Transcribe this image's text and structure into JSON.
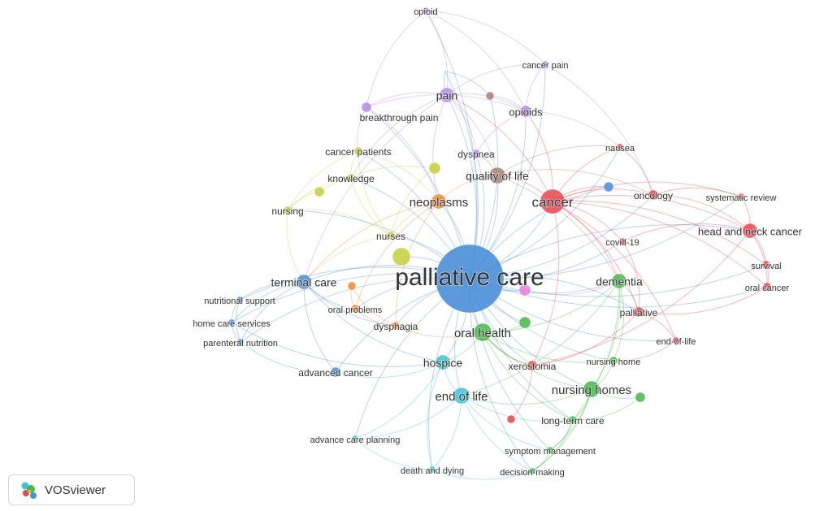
{
  "colors": {
    "red": "#e8454f",
    "green": "#45b94a",
    "blue": "#4a8fd8",
    "yellow": "#c6cf3a",
    "purple": "#b389e6",
    "cyan": "#3cc3d6",
    "orange": "#f08c2e",
    "brown": "#a78174",
    "pink": "#e57fd7"
  },
  "nodes": [
    {
      "id": "palliative-care",
      "label": "palliative care",
      "cluster": "blue"
    },
    {
      "id": "cancer",
      "label": "cancer",
      "cluster": "red"
    },
    {
      "id": "quality-of-life",
      "label": "quality of life",
      "cluster": "brown"
    },
    {
      "id": "neoplasms",
      "label": "neoplasms",
      "cluster": "orange"
    },
    {
      "id": "pain",
      "label": "pain",
      "cluster": "purple"
    },
    {
      "id": "opioids",
      "label": "opioids",
      "cluster": "purple"
    },
    {
      "id": "opioid",
      "label": "opioid",
      "cluster": "purple"
    },
    {
      "id": "cancer-pain",
      "label": "cancer pain",
      "cluster": "purple"
    },
    {
      "id": "breakthrough-pain",
      "label": "breakthrough pain",
      "cluster": "purple"
    },
    {
      "id": "dyspnea",
      "label": "dyspnea",
      "cluster": "purple"
    },
    {
      "id": "nausea",
      "label": "nausea",
      "cluster": "red"
    },
    {
      "id": "cancer-patients",
      "label": "cancer patients",
      "cluster": "yellow"
    },
    {
      "id": "knowledge",
      "label": "knowledge",
      "cluster": "yellow"
    },
    {
      "id": "nursing",
      "label": "nursing",
      "cluster": "yellow"
    },
    {
      "id": "nurses",
      "label": "nurses",
      "cluster": "yellow"
    },
    {
      "id": "oncology",
      "label": "oncology",
      "cluster": "red"
    },
    {
      "id": "systematic-review",
      "label": "systematic review",
      "cluster": "red"
    },
    {
      "id": "head-and-neck-cancer",
      "label": "head and neck cancer",
      "cluster": "red"
    },
    {
      "id": "covid-19",
      "label": "covid-19",
      "cluster": "red"
    },
    {
      "id": "survival",
      "label": "survival",
      "cluster": "red"
    },
    {
      "id": "oral-cancer",
      "label": "oral cancer",
      "cluster": "red"
    },
    {
      "id": "dementia",
      "label": "dementia",
      "cluster": "green"
    },
    {
      "id": "palliative",
      "label": "palliative",
      "cluster": "red"
    },
    {
      "id": "end-of-life-hyph",
      "label": "end-of-life",
      "cluster": "red"
    },
    {
      "id": "terminal-care",
      "label": "terminal care",
      "cluster": "blue"
    },
    {
      "id": "nutritional-support",
      "label": "nutritional support",
      "cluster": "blue"
    },
    {
      "id": "home-care-services",
      "label": "home care services",
      "cluster": "blue"
    },
    {
      "id": "parenteral-nutrition",
      "label": "parenteral nutrition",
      "cluster": "blue"
    },
    {
      "id": "oral-problems",
      "label": "oral problems",
      "cluster": "orange"
    },
    {
      "id": "dysphagia",
      "label": "dysphagia",
      "cluster": "orange"
    },
    {
      "id": "oral-health",
      "label": "oral health",
      "cluster": "green"
    },
    {
      "id": "hospice",
      "label": "hospice",
      "cluster": "cyan"
    },
    {
      "id": "xerostomia",
      "label": "xerostomia",
      "cluster": "red"
    },
    {
      "id": "nursing-home",
      "label": "nursing home",
      "cluster": "green"
    },
    {
      "id": "advanced-cancer",
      "label": "advanced cancer",
      "cluster": "blue"
    },
    {
      "id": "end-of-life",
      "label": "end of life",
      "cluster": "cyan"
    },
    {
      "id": "nursing-homes",
      "label": "nursing homes",
      "cluster": "green"
    },
    {
      "id": "long-term-care",
      "label": "long-term care",
      "cluster": "green"
    },
    {
      "id": "advance-care-planning",
      "label": "advance care planning",
      "cluster": "cyan"
    },
    {
      "id": "symptom-management",
      "label": "symptom management",
      "cluster": "green"
    },
    {
      "id": "death-and-dying",
      "label": "death and dying",
      "cluster": "cyan"
    },
    {
      "id": "decision-making",
      "label": "decision-making",
      "cluster": "green"
    },
    {
      "id": "u-blue-top",
      "label": "",
      "cluster": "blue"
    },
    {
      "id": "u-blue-right",
      "label": "",
      "cluster": "blue"
    },
    {
      "id": "u-yellow-1",
      "label": "",
      "cluster": "yellow"
    },
    {
      "id": "u-yellow-2",
      "label": "",
      "cluster": "yellow"
    },
    {
      "id": "u-yellow-big",
      "label": "",
      "cluster": "yellow"
    },
    {
      "id": "u-orange",
      "label": "",
      "cluster": "orange"
    },
    {
      "id": "u-pink",
      "label": "",
      "cluster": "pink"
    },
    {
      "id": "u-brown",
      "label": "",
      "cluster": "brown"
    },
    {
      "id": "u-green-1",
      "label": "",
      "cluster": "green"
    },
    {
      "id": "u-green-2",
      "label": "",
      "cluster": "green"
    },
    {
      "id": "u-red-1",
      "label": "",
      "cluster": "red"
    }
  ],
  "edges": [
    [
      "palliative-care",
      "cancer"
    ],
    [
      "palliative-care",
      "quality-of-life"
    ],
    [
      "palliative-care",
      "neoplasms"
    ],
    [
      "palliative-care",
      "pain"
    ],
    [
      "palliative-care",
      "opioids"
    ],
    [
      "palliative-care",
      "opioid"
    ],
    [
      "palliative-care",
      "cancer-pain"
    ],
    [
      "palliative-care",
      "breakthrough-pain"
    ],
    [
      "palliative-care",
      "dyspnea"
    ],
    [
      "palliative-care",
      "nausea"
    ],
    [
      "palliative-care",
      "cancer-patients"
    ],
    [
      "palliative-care",
      "knowledge"
    ],
    [
      "palliative-care",
      "nursing"
    ],
    [
      "palliative-care",
      "nurses"
    ],
    [
      "palliative-care",
      "oncology"
    ],
    [
      "palliative-care",
      "systematic-review"
    ],
    [
      "palliative-care",
      "head-and-neck-cancer"
    ],
    [
      "palliative-care",
      "covid-19"
    ],
    [
      "palliative-care",
      "survival"
    ],
    [
      "palliative-care",
      "oral-cancer"
    ],
    [
      "palliative-care",
      "dementia"
    ],
    [
      "palliative-care",
      "palliative"
    ],
    [
      "palliative-care",
      "end-of-life-hyph"
    ],
    [
      "palliative-care",
      "terminal-care"
    ],
    [
      "palliative-care",
      "nutritional-support"
    ],
    [
      "palliative-care",
      "home-care-services"
    ],
    [
      "palliative-care",
      "parenteral-nutrition"
    ],
    [
      "palliative-care",
      "oral-problems"
    ],
    [
      "palliative-care",
      "dysphagia"
    ],
    [
      "palliative-care",
      "oral-health"
    ],
    [
      "palliative-care",
      "hospice"
    ],
    [
      "palliative-care",
      "xerostomia"
    ],
    [
      "palliative-care",
      "nursing-home"
    ],
    [
      "palliative-care",
      "advanced-cancer"
    ],
    [
      "palliative-care",
      "end-of-life"
    ],
    [
      "palliative-care",
      "nursing-homes"
    ],
    [
      "palliative-care",
      "long-term-care"
    ],
    [
      "palliative-care",
      "advance-care-planning"
    ],
    [
      "palliative-care",
      "symptom-management"
    ],
    [
      "palliative-care",
      "death-and-dying"
    ],
    [
      "palliative-care",
      "decision-making"
    ],
    [
      "palliative-care",
      "u-blue-top"
    ],
    [
      "palliative-care",
      "u-blue-right"
    ],
    [
      "palliative-care",
      "u-yellow-big"
    ],
    [
      "palliative-care",
      "u-pink"
    ],
    [
      "palliative-care",
      "u-green-1"
    ],
    [
      "palliative-care",
      "u-brown"
    ],
    [
      "cancer",
      "head-and-neck-cancer"
    ],
    [
      "cancer",
      "oncology"
    ],
    [
      "cancer",
      "systematic-review"
    ],
    [
      "cancer",
      "nausea"
    ],
    [
      "cancer",
      "quality-of-life"
    ],
    [
      "cancer",
      "pain"
    ],
    [
      "cancer",
      "covid-19"
    ],
    [
      "cancer",
      "oral-cancer"
    ],
    [
      "cancer",
      "survival"
    ],
    [
      "cancer",
      "palliative"
    ],
    [
      "cancer",
      "xerostomia"
    ],
    [
      "cancer",
      "end-of-life-hyph"
    ],
    [
      "cancer",
      "opioids"
    ],
    [
      "cancer",
      "dementia"
    ],
    [
      "cancer",
      "u-blue-right"
    ],
    [
      "head-and-neck-cancer",
      "survival"
    ],
    [
      "head-and-neck-cancer",
      "oral-cancer"
    ],
    [
      "head-and-neck-cancer",
      "systematic-review"
    ],
    [
      "head-and-neck-cancer",
      "covid-19"
    ],
    [
      "head-and-neck-cancer",
      "oncology"
    ],
    [
      "head-and-neck-cancer",
      "xerostomia"
    ],
    [
      "survival",
      "oral-cancer"
    ],
    [
      "oral-cancer",
      "palliative"
    ],
    [
      "xerostomia",
      "palliative"
    ],
    [
      "xerostomia",
      "oral-health"
    ],
    [
      "pain",
      "opioids"
    ],
    [
      "pain",
      "opioid"
    ],
    [
      "pain",
      "breakthrough-pain"
    ],
    [
      "pain",
      "cancer-pain"
    ],
    [
      "pain",
      "dyspnea"
    ],
    [
      "pain",
      "neoplasms"
    ],
    [
      "pain",
      "quality-of-life"
    ],
    [
      "pain",
      "terminal-care"
    ],
    [
      "pain",
      "knowledge"
    ],
    [
      "opioids",
      "cancer-pain"
    ],
    [
      "opioids",
      "breakthrough-pain"
    ],
    [
      "opioids",
      "opioid"
    ],
    [
      "opioids",
      "dyspnea"
    ],
    [
      "opioids",
      "nausea"
    ],
    [
      "opioid",
      "breakthrough-pain"
    ],
    [
      "opioid",
      "cancer-pain"
    ],
    [
      "cancer-pain",
      "oncology"
    ],
    [
      "breakthrough-pain",
      "cancer-patients"
    ],
    [
      "breakthrough-pain",
      "neoplasms"
    ],
    [
      "cancer-patients",
      "knowledge"
    ],
    [
      "cancer-patients",
      "nursing"
    ],
    [
      "cancer-patients",
      "nurses"
    ],
    [
      "cancer-patients",
      "neoplasms"
    ],
    [
      "knowledge",
      "nursing"
    ],
    [
      "knowledge",
      "nurses"
    ],
    [
      "nursing",
      "nurses"
    ],
    [
      "nursing",
      "terminal-care"
    ],
    [
      "nursing",
      "u-yellow-1"
    ],
    [
      "nurses",
      "terminal-care"
    ],
    [
      "nurses",
      "neoplasms"
    ],
    [
      "u-yellow-1",
      "u-yellow-2"
    ],
    [
      "u-yellow-2",
      "nurses"
    ],
    [
      "neoplasms",
      "quality-of-life"
    ],
    [
      "neoplasms",
      "terminal-care"
    ],
    [
      "neoplasms",
      "dysphagia"
    ],
    [
      "neoplasms",
      "oral-problems"
    ],
    [
      "quality-of-life",
      "dyspnea"
    ],
    [
      "quality-of-life",
      "oncology"
    ],
    [
      "quality-of-life",
      "dementia"
    ],
    [
      "quality-of-life",
      "nausea"
    ],
    [
      "terminal-care",
      "nutritional-support"
    ],
    [
      "terminal-care",
      "home-care-services"
    ],
    [
      "terminal-care",
      "parenteral-nutrition"
    ],
    [
      "terminal-care",
      "advanced-cancer"
    ],
    [
      "terminal-care",
      "hospice"
    ],
    [
      "terminal-care",
      "oral-problems"
    ],
    [
      "terminal-care",
      "dysphagia"
    ],
    [
      "nutritional-support",
      "home-care-services"
    ],
    [
      "nutritional-support",
      "parenteral-nutrition"
    ],
    [
      "home-care-services",
      "parenteral-nutrition"
    ],
    [
      "home-care-services",
      "hospice"
    ],
    [
      "parenteral-nutrition",
      "advanced-cancer"
    ],
    [
      "oral-problems",
      "dysphagia"
    ],
    [
      "oral-problems",
      "u-orange"
    ],
    [
      "dysphagia",
      "u-orange"
    ],
    [
      "dysphagia",
      "oral-health"
    ],
    [
      "oral-health",
      "dementia"
    ],
    [
      "oral-health",
      "nursing-homes"
    ],
    [
      "oral-health",
      "xerostomia"
    ],
    [
      "oral-health",
      "nursing-home"
    ],
    [
      "oral-health",
      "hospice"
    ],
    [
      "oral-health",
      "long-term-care"
    ],
    [
      "oral-health",
      "u-green-1"
    ],
    [
      "dementia",
      "nursing-homes"
    ],
    [
      "dementia",
      "nursing-home"
    ],
    [
      "dementia",
      "palliative"
    ],
    [
      "dementia",
      "long-term-care"
    ],
    [
      "dementia",
      "end-of-life"
    ],
    [
      "nursing-homes",
      "nursing-home"
    ],
    [
      "nursing-homes",
      "long-term-care"
    ],
    [
      "nursing-homes",
      "end-of-life"
    ],
    [
      "nursing-homes",
      "u-green-2"
    ],
    [
      "nursing-homes",
      "symptom-management"
    ],
    [
      "nursing-homes",
      "decision-making"
    ],
    [
      "hospice",
      "end-of-life"
    ],
    [
      "hospice",
      "advanced-cancer"
    ],
    [
      "hospice",
      "advance-care-planning"
    ],
    [
      "hospice",
      "death-and-dying"
    ],
    [
      "end-of-life",
      "advance-care-planning"
    ],
    [
      "end-of-life",
      "death-and-dying"
    ],
    [
      "end-of-life",
      "decision-making"
    ],
    [
      "end-of-life",
      "symptom-management"
    ],
    [
      "end-of-life",
      "long-term-care"
    ],
    [
      "long-term-care",
      "symptom-management"
    ],
    [
      "long-term-care",
      "decision-making"
    ],
    [
      "long-term-care",
      "u-green-2"
    ],
    [
      "symptom-management",
      "decision-making"
    ],
    [
      "death-and-dying",
      "decision-making"
    ],
    [
      "death-and-dying",
      "advance-care-planning"
    ],
    [
      "palliative",
      "end-of-life-hyph"
    ],
    [
      "end-of-life-hyph",
      "nursing-home"
    ],
    [
      "covid-19",
      "palliative"
    ],
    [
      "nausea",
      "oncology"
    ],
    [
      "oncology",
      "systematic-review"
    ],
    [
      "u-blue-top",
      "pain"
    ],
    [
      "u-blue-top",
      "u-brown"
    ],
    [
      "u-brown",
      "opioids"
    ],
    [
      "u-pink",
      "dementia"
    ],
    [
      "u-red-1",
      "xerostomia"
    ]
  ],
  "logo": {
    "text": "VOSviewer"
  }
}
